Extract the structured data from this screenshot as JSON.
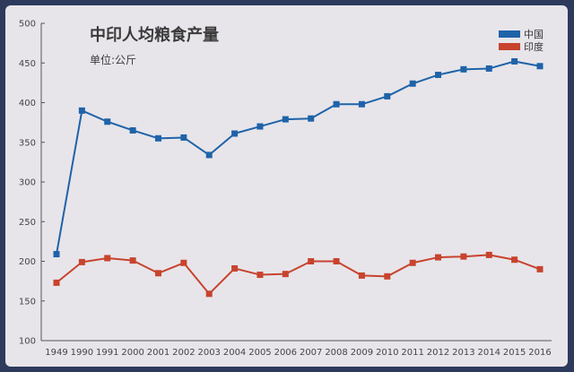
{
  "chart_data": {
    "type": "line",
    "title": "中印人均粮食产量",
    "subtitle": "单位:公斤",
    "categories": [
      "1949",
      "1990",
      "1991",
      "2000",
      "2001",
      "2002",
      "2003",
      "2004",
      "2005",
      "2006",
      "2007",
      "2008",
      "2009",
      "2010",
      "2011",
      "2012",
      "2013",
      "2014",
      "2015",
      "2016"
    ],
    "series": [
      {
        "name": "中国",
        "color": "#1f63a8",
        "values": [
          209,
          390,
          376,
          365,
          355,
          356,
          334,
          361,
          370,
          379,
          380,
          398,
          398,
          408,
          424,
          435,
          442,
          443,
          452,
          446
        ]
      },
      {
        "name": "印度",
        "color": "#c8432e",
        "values": [
          173,
          199,
          204,
          201,
          185,
          198,
          159,
          191,
          183,
          184,
          200,
          200,
          182,
          181,
          198,
          205,
          206,
          208,
          202,
          190
        ]
      }
    ],
    "yticks": [
      100,
      150,
      200,
      250,
      300,
      350,
      400,
      450,
      500
    ],
    "ylim": [
      100,
      500
    ],
    "legend": "top-right",
    "grid": false
  }
}
